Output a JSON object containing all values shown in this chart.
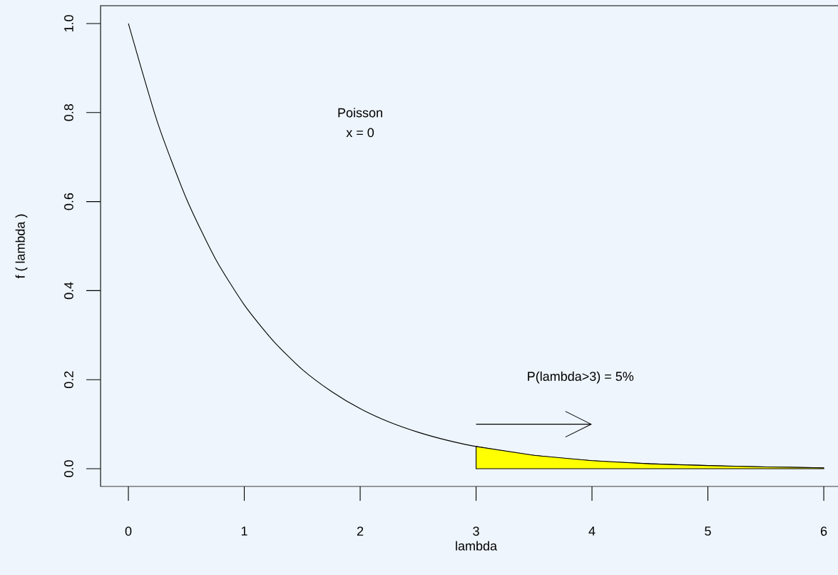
{
  "chart_data": {
    "type": "line",
    "xlabel": "lambda",
    "ylabel": "f ( lambda )",
    "x": [
      0,
      0.25,
      0.5,
      0.75,
      1,
      1.25,
      1.5,
      1.75,
      2,
      2.25,
      2.5,
      2.75,
      3,
      3.5,
      4,
      4.5,
      5,
      5.5,
      6
    ],
    "series": [
      {
        "color": "#000000",
        "values": [
          1,
          0.779,
          0.607,
          0.472,
          0.368,
          0.287,
          0.223,
          0.174,
          0.135,
          0.105,
          0.082,
          0.064,
          0.05,
          0.03,
          0.018,
          0.011,
          0.007,
          0.004,
          0.002
        ]
      },
      {
        "type": "area",
        "color": "#ffff00",
        "x": [
          3,
          3.5,
          4,
          4.5,
          5,
          5.5,
          6
        ],
        "values": [
          0.05,
          0.03,
          0.018,
          0.011,
          0.007,
          0.004,
          0.002
        ]
      }
    ],
    "xlim": [
      -0.24,
      6.24
    ],
    "ylim": [
      -0.04,
      1.04
    ],
    "xticks": [
      0,
      1,
      2,
      3,
      4,
      5,
      6
    ],
    "yticks": [
      {
        "value": 0,
        "label": "0.0"
      },
      {
        "value": 0.2,
        "label": "0.2"
      },
      {
        "value": 0.4,
        "label": "0.4"
      },
      {
        "value": 0.6,
        "label": "0.6"
      },
      {
        "value": 0.8,
        "label": "0.8"
      },
      {
        "value": 1,
        "label": "1.0"
      }
    ],
    "grid": false,
    "annotations": [
      "Poisson",
      "x = 0",
      "P(lambda>3) = 5%"
    ]
  }
}
